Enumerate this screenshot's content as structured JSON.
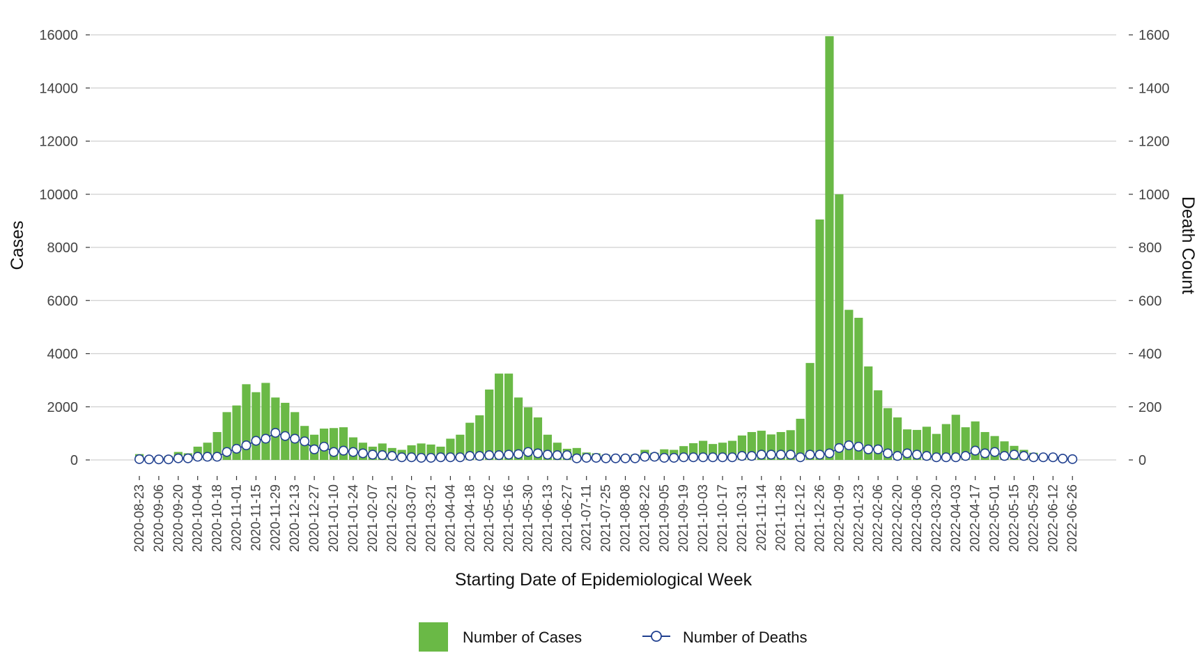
{
  "chart_data": {
    "type": "bar",
    "title": "",
    "xlabel": "Starting Date of Epidemiological Week",
    "ylabel": "Cases",
    "y2label": "Death Count",
    "ylim": [
      0,
      16000
    ],
    "y2lim": [
      0,
      1600
    ],
    "yticks": [
      0,
      2000,
      4000,
      6000,
      8000,
      10000,
      12000,
      14000,
      16000
    ],
    "y2ticks": [
      0,
      200,
      400,
      600,
      800,
      1000,
      1200,
      1400,
      1600
    ],
    "grid": true,
    "legend_position": "bottom",
    "colors": {
      "cases": "#6ab946",
      "deaths_line": "#1f3f8f",
      "deaths_marker_fill": "#ffffff",
      "gridline": "#cfcfcf",
      "axis_tick": "#333333"
    },
    "x": [
      "2020-08-23",
      "2020-08-30",
      "2020-09-06",
      "2020-09-13",
      "2020-09-20",
      "2020-09-27",
      "2020-10-04",
      "2020-10-11",
      "2020-10-18",
      "2020-10-25",
      "2020-11-01",
      "2020-11-08",
      "2020-11-15",
      "2020-11-22",
      "2020-11-29",
      "2020-12-06",
      "2020-12-13",
      "2020-12-20",
      "2020-12-27",
      "2021-01-03",
      "2021-01-10",
      "2021-01-17",
      "2021-01-24",
      "2021-01-31",
      "2021-02-07",
      "2021-02-14",
      "2021-02-21",
      "2021-02-28",
      "2021-03-07",
      "2021-03-14",
      "2021-03-21",
      "2021-03-28",
      "2021-04-04",
      "2021-04-11",
      "2021-04-18",
      "2021-04-25",
      "2021-05-02",
      "2021-05-09",
      "2021-05-16",
      "2021-05-23",
      "2021-05-30",
      "2021-06-06",
      "2021-06-13",
      "2021-06-20",
      "2021-06-27",
      "2021-07-04",
      "2021-07-11",
      "2021-07-18",
      "2021-07-25",
      "2021-08-01",
      "2021-08-08",
      "2021-08-15",
      "2021-08-22",
      "2021-08-29",
      "2021-09-05",
      "2021-09-12",
      "2021-09-19",
      "2021-09-26",
      "2021-10-03",
      "2021-10-10",
      "2021-10-17",
      "2021-10-24",
      "2021-10-31",
      "2021-11-07",
      "2021-11-14",
      "2021-11-21",
      "2021-11-28",
      "2021-12-05",
      "2021-12-12",
      "2021-12-19",
      "2021-12-26",
      "2022-01-02",
      "2022-01-09",
      "2022-01-16",
      "2022-01-23",
      "2022-01-30",
      "2022-02-06",
      "2022-02-13",
      "2022-02-20",
      "2022-02-27",
      "2022-03-06",
      "2022-03-13",
      "2022-03-20",
      "2022-03-27",
      "2022-04-03",
      "2022-04-10",
      "2022-04-17",
      "2022-04-24",
      "2022-05-01",
      "2022-05-08",
      "2022-05-15",
      "2022-05-22",
      "2022-05-29",
      "2022-06-05",
      "2022-06-12",
      "2022-06-19",
      "2022-06-26"
    ],
    "x_tick_labels": [
      "2020-08-23",
      "2020-09-06",
      "2020-09-20",
      "2020-10-04",
      "2020-10-18",
      "2020-11-01",
      "2020-11-15",
      "2020-11-29",
      "2020-12-13",
      "2020-12-27",
      "2021-01-10",
      "2021-01-24",
      "2021-02-07",
      "2021-02-21",
      "2021-03-07",
      "2021-03-21",
      "2021-04-04",
      "2021-04-18",
      "2021-05-02",
      "2021-05-16",
      "2021-05-30",
      "2021-06-13",
      "2021-06-27",
      "2021-07-11",
      "2021-07-25",
      "2021-08-08",
      "2021-08-22",
      "2021-09-05",
      "2021-09-19",
      "2021-10-03",
      "2021-10-17",
      "2021-10-31",
      "2021-11-14",
      "2021-11-28",
      "2021-12-12",
      "2021-12-26",
      "2022-01-09",
      "2022-01-23",
      "2022-02-06",
      "2022-02-20",
      "2022-03-06",
      "2022-03-20",
      "2022-04-03",
      "2022-04-17",
      "2022-05-01",
      "2022-05-15",
      "2022-05-29",
      "2022-06-12",
      "2022-06-26"
    ],
    "series": [
      {
        "name": "Number of Cases",
        "type": "bar",
        "axis": "left",
        "values": [
          220,
          80,
          100,
          150,
          300,
          250,
          500,
          650,
          1050,
          1800,
          2050,
          2850,
          2550,
          2900,
          2350,
          2150,
          1800,
          1280,
          950,
          1180,
          1200,
          1230,
          850,
          650,
          500,
          620,
          450,
          380,
          550,
          620,
          580,
          500,
          800,
          950,
          1400,
          1680,
          2650,
          3250,
          3250,
          2350,
          1980,
          1600,
          950,
          650,
          420,
          450,
          280,
          250,
          200,
          160,
          180,
          200,
          380,
          270,
          400,
          380,
          520,
          630,
          720,
          600,
          650,
          720,
          920,
          1050,
          1100,
          960,
          1050,
          1120,
          1550,
          3650,
          9050,
          15950,
          10000,
          5650,
          5350,
          3520,
          2620,
          1950,
          1600,
          1150,
          1130,
          1250,
          980,
          1350,
          1700,
          1230,
          1450,
          1050,
          900,
          700,
          530,
          380,
          270,
          160,
          130,
          70,
          50
        ]
      },
      {
        "name": "Number of Deaths",
        "type": "line",
        "axis": "right",
        "values": [
          3,
          2,
          2,
          2,
          6,
          6,
          12,
          12,
          12,
          30,
          42,
          55,
          72,
          80,
          102,
          90,
          80,
          70,
          40,
          50,
          30,
          35,
          30,
          25,
          20,
          18,
          15,
          10,
          10,
          8,
          8,
          10,
          10,
          10,
          15,
          15,
          18,
          18,
          20,
          22,
          30,
          25,
          20,
          18,
          18,
          6,
          8,
          8,
          6,
          6,
          6,
          6,
          12,
          12,
          8,
          8,
          10,
          10,
          10,
          10,
          10,
          10,
          15,
          15,
          20,
          20,
          20,
          20,
          10,
          20,
          20,
          25,
          45,
          55,
          50,
          40,
          40,
          25,
          15,
          25,
          20,
          15,
          10,
          10,
          10,
          15,
          35,
          25,
          30,
          15,
          20,
          15,
          10,
          10,
          10,
          5,
          3
        ]
      }
    ]
  },
  "legend": {
    "cases_label": "Number of Cases",
    "deaths_label": "Number of Deaths"
  }
}
